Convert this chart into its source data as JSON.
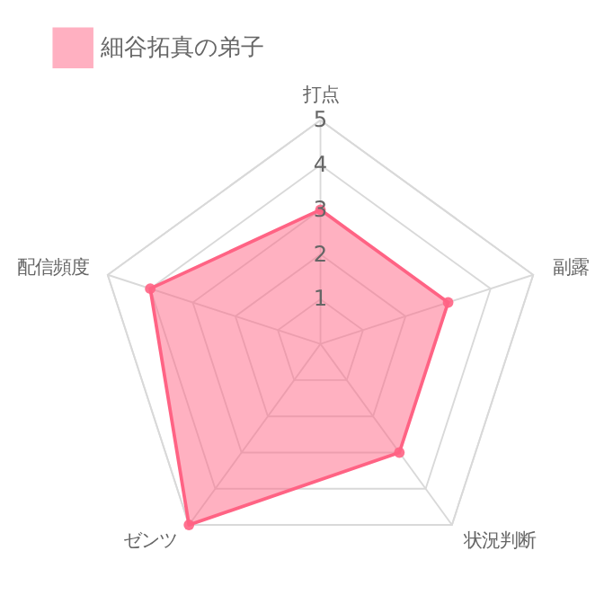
{
  "chart_data": {
    "type": "radar",
    "categories": [
      "打点",
      "副露",
      "状況判断",
      "ゼンツ",
      "配信頻度"
    ],
    "series": [
      {
        "name": "細谷拓真の弟子",
        "color": "#ff6384",
        "values": [
          3,
          3,
          3,
          5,
          4
        ]
      }
    ],
    "ylim": [
      0,
      5
    ],
    "yticks": [
      1,
      2,
      3,
      4,
      5
    ],
    "grid": true,
    "legend": "top",
    "marker": "circle"
  }
}
